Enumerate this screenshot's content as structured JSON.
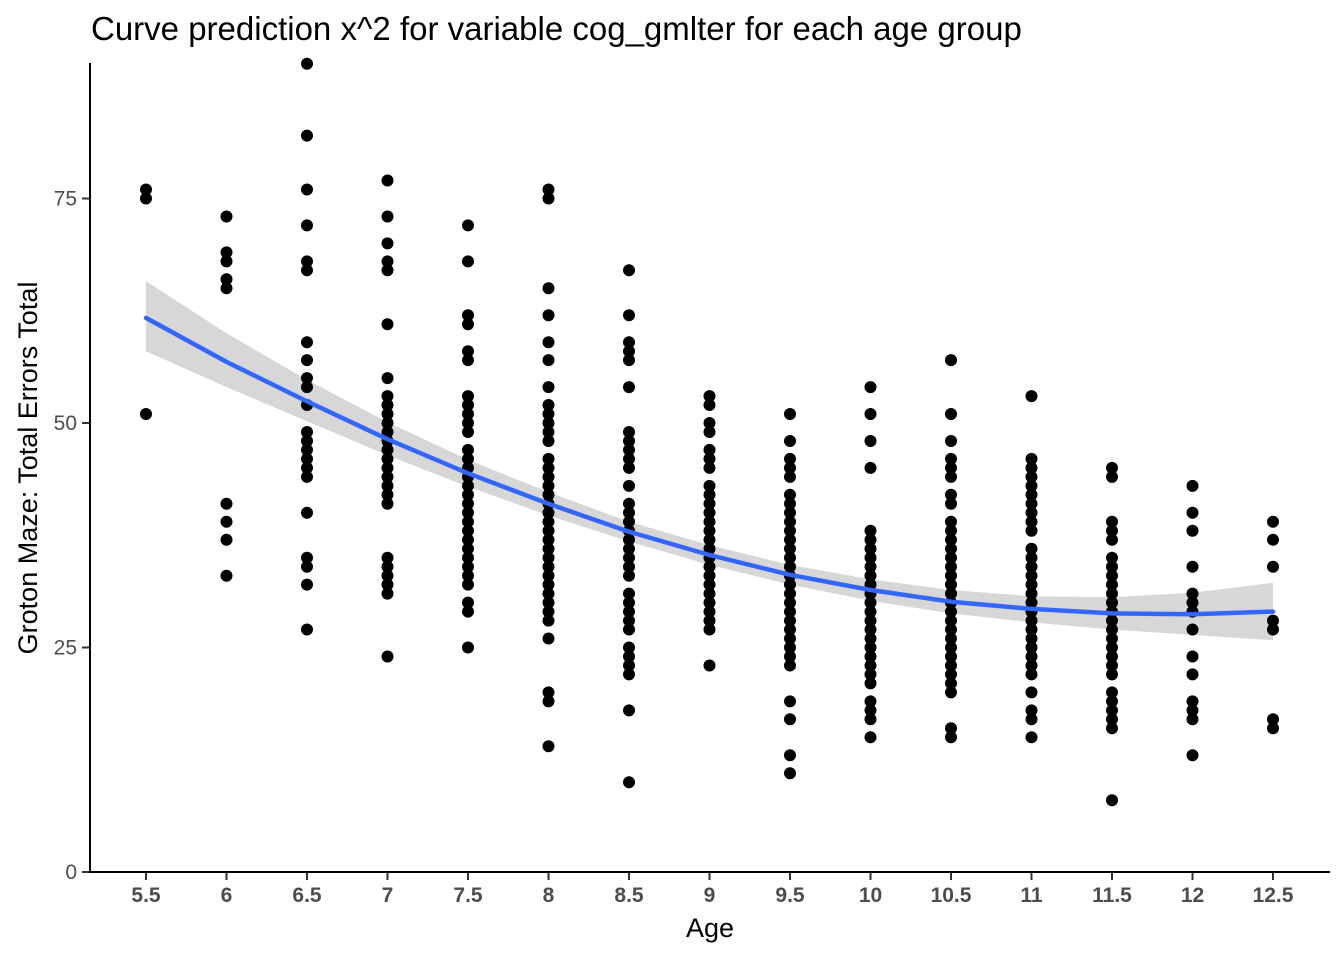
{
  "chart_data": {
    "type": "scatter",
    "title": "Curve prediction x^2  for variable cog_gmlter for each age group",
    "xlabel": "Age",
    "ylabel": "Groton Maze: Total Errors Total",
    "x_categories": [
      "5.5",
      "6",
      "6.5",
      "7",
      "7.5",
      "8",
      "8.5",
      "9",
      "9.5",
      "10",
      "10.5",
      "11",
      "11.5",
      "12",
      "12.5"
    ],
    "y_ticks": [
      0,
      25,
      50,
      75
    ],
    "y_tick_labels": [
      "0",
      "25",
      "50",
      "75"
    ],
    "ylim": [
      0,
      90
    ],
    "grid": false,
    "points": {
      "5.5": [
        76,
        75,
        51
      ],
      "6": [
        73,
        69,
        68,
        66,
        65,
        41,
        39,
        37,
        33
      ],
      "6.5": [
        90,
        82,
        76,
        72,
        68,
        67,
        59,
        57,
        55,
        54,
        52,
        49,
        48,
        47,
        46,
        45,
        44,
        40,
        35,
        34,
        32,
        27
      ],
      "7": [
        77,
        73,
        70,
        68,
        67,
        61,
        55,
        53,
        52,
        51,
        50,
        49,
        48,
        47,
        46,
        45,
        44,
        43,
        42,
        41,
        35,
        34,
        33,
        32,
        31,
        24
      ],
      "7.5": [
        72,
        68,
        62,
        61,
        58,
        57,
        53,
        52,
        51,
        50,
        49,
        47,
        46,
        45,
        44,
        43,
        42,
        41,
        40,
        39,
        38,
        37,
        36,
        35,
        34,
        33,
        32,
        30,
        29,
        25
      ],
      "8": [
        76,
        75,
        65,
        62,
        59,
        57,
        54,
        52,
        51,
        50,
        49,
        48,
        46,
        45,
        44,
        43,
        42,
        41,
        40,
        39,
        38,
        37,
        36,
        35,
        34,
        33,
        32,
        31,
        30,
        29,
        28,
        26,
        20,
        19,
        14
      ],
      "8.5": [
        67,
        62,
        59,
        58,
        57,
        54,
        49,
        48,
        47,
        46,
        45,
        43,
        41,
        40,
        39,
        38,
        37,
        36,
        35,
        34,
        33,
        31,
        30,
        29,
        28,
        27,
        25,
        24,
        23,
        22,
        18,
        10
      ],
      "9": [
        53,
        52,
        50,
        49,
        47,
        46,
        45,
        43,
        42,
        41,
        40,
        39,
        38,
        37,
        36,
        35,
        34,
        33,
        32,
        31,
        30,
        29,
        28,
        27,
        23
      ],
      "9.5": [
        51,
        48,
        46,
        45,
        44,
        42,
        41,
        40,
        39,
        38,
        37,
        36,
        35,
        34,
        33,
        32,
        31,
        30,
        29,
        28,
        27,
        26,
        25,
        24,
        23,
        19,
        17,
        13,
        11
      ],
      "10": [
        54,
        51,
        48,
        45,
        38,
        37,
        36,
        35,
        34,
        33,
        32,
        31,
        30,
        29,
        28,
        27,
        26,
        25,
        24,
        23,
        22,
        21,
        19,
        18,
        17,
        15
      ],
      "10.5": [
        57,
        51,
        48,
        46,
        45,
        44,
        42,
        41,
        39,
        38,
        37,
        36,
        35,
        34,
        33,
        32,
        31,
        30,
        29,
        28,
        27,
        26,
        25,
        24,
        23,
        22,
        21,
        20,
        16,
        15
      ],
      "11": [
        53,
        46,
        45,
        44,
        43,
        42,
        41,
        40,
        39,
        38,
        36,
        35,
        34,
        33,
        32,
        31,
        30,
        29,
        28,
        27,
        26,
        25,
        24,
        23,
        22,
        20,
        18,
        17,
        15
      ],
      "11.5": [
        45,
        44,
        39,
        38,
        37,
        35,
        34,
        33,
        32,
        31,
        30,
        29,
        28,
        27,
        26,
        25,
        24,
        23,
        22,
        20,
        19,
        18,
        17,
        16,
        8
      ],
      "12": [
        43,
        40,
        38,
        34,
        31,
        30,
        29,
        27,
        24,
        22,
        19,
        18,
        17,
        13
      ],
      "12.5": [
        39,
        37,
        34,
        28,
        27,
        17,
        16
      ]
    },
    "fit_curve": {
      "type": "quadratic",
      "color": "#3366ff",
      "x": [
        5.5,
        6,
        6.5,
        7,
        7.5,
        8,
        8.5,
        9,
        9.5,
        10,
        10.5,
        11,
        11.5,
        12,
        12.5
      ],
      "y": [
        61.7,
        56.8,
        52.4,
        48.2,
        44.4,
        41.0,
        37.9,
        35.3,
        33.1,
        31.4,
        30.1,
        29.3,
        28.8,
        28.7,
        29.0
      ],
      "ci_lower": [
        58.0,
        54.0,
        50.2,
        46.4,
        42.9,
        39.7,
        36.8,
        34.2,
        32.0,
        30.2,
        28.8,
        27.8,
        27.0,
        26.4,
        25.8
      ],
      "ci_upper": [
        65.8,
        60.0,
        54.8,
        50.1,
        45.9,
        42.3,
        39.0,
        36.4,
        34.2,
        32.6,
        31.4,
        30.7,
        30.6,
        31.1,
        32.2
      ],
      "ci_color": "#d0d0d0"
    },
    "point_color": "#000000"
  }
}
